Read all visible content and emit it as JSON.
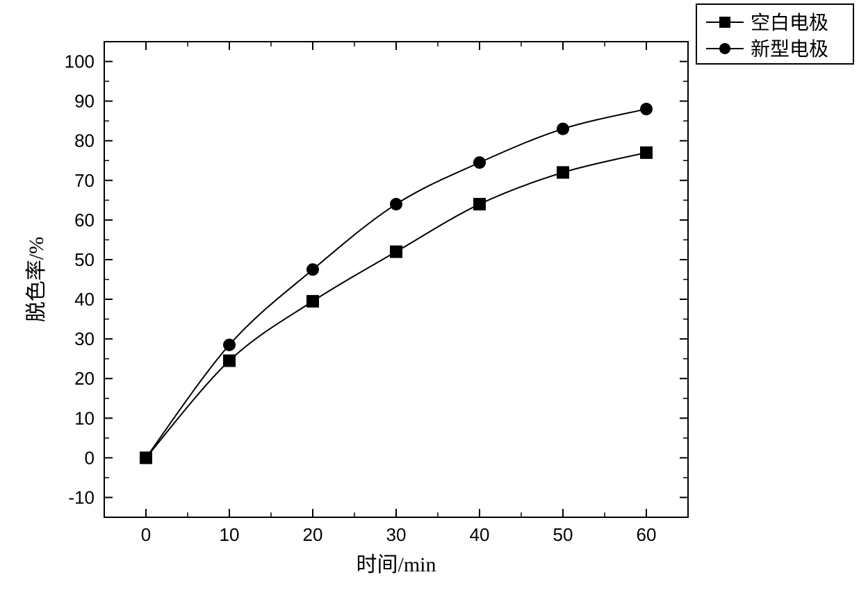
{
  "chart": {
    "type": "line",
    "background_color": "#ffffff",
    "line_color": "#000000",
    "axis_color": "#000000",
    "text_color": "#000000",
    "xlabel": "时间/min",
    "ylabel": "脱色率/%",
    "label_fontsize": 30,
    "tick_fontsize": 26,
    "xlim": [
      -5,
      65
    ],
    "ylim": [
      -15,
      105
    ],
    "xticks_major": [
      0,
      10,
      20,
      30,
      40,
      50,
      60
    ],
    "xticks_minor": [
      5,
      15,
      25,
      35,
      45,
      55,
      65
    ],
    "yticks_major": [
      -10,
      0,
      10,
      20,
      30,
      40,
      50,
      60,
      70,
      80,
      90,
      100
    ],
    "yticks_minor": [
      -15,
      -5,
      5,
      15,
      25,
      35,
      45,
      55,
      65,
      75,
      85,
      95,
      105
    ],
    "line_width": 2,
    "marker_size": 9,
    "series": [
      {
        "name": "空白电极",
        "marker": "square",
        "color": "#000000",
        "x": [
          0,
          10,
          20,
          30,
          40,
          50,
          60
        ],
        "y": [
          0,
          24.5,
          39.5,
          52.0,
          64.0,
          72.0,
          77.0
        ]
      },
      {
        "name": "新型电极",
        "marker": "circle",
        "color": "#000000",
        "x": [
          0,
          10,
          20,
          30,
          40,
          50,
          60
        ],
        "y": [
          0,
          28.5,
          47.5,
          64.0,
          74.5,
          83.0,
          88.0
        ]
      }
    ],
    "legend": {
      "position": "top-right-outside",
      "items": [
        "空白电极",
        "新型电极"
      ]
    }
  }
}
